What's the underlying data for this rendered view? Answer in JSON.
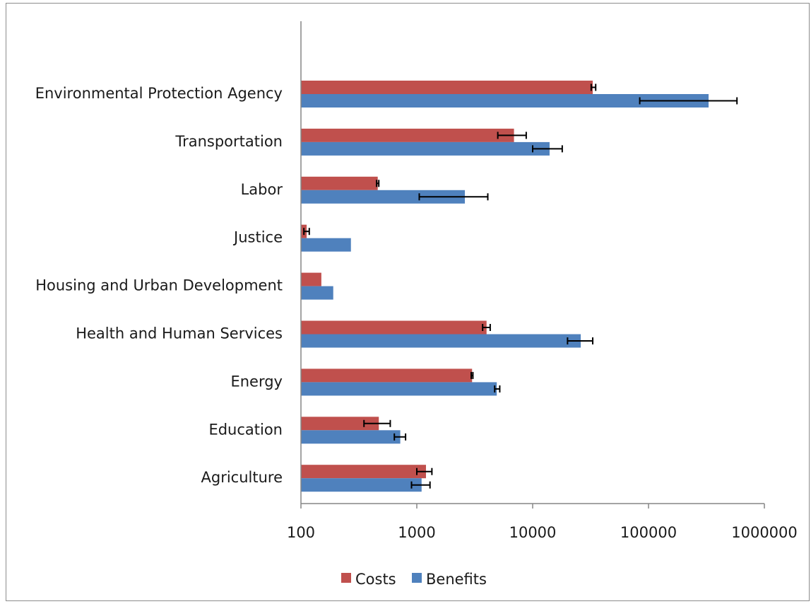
{
  "chart_data": {
    "type": "bar",
    "orientation": "horizontal",
    "xscale": "log",
    "xlim": [
      100,
      1000000
    ],
    "xticks": [
      "100",
      "1000",
      "10000",
      "100000",
      "1000000"
    ],
    "xtick_values": [
      100,
      1000,
      10000,
      100000,
      1000000
    ],
    "categories": [
      "Environmental Protection Agency",
      "Transportation",
      "Labor",
      "Justice",
      "Housing and Urban Development",
      "Health and Human Services",
      "Energy",
      "Education",
      "Agriculture"
    ],
    "series": [
      {
        "name": "Costs",
        "color": "#c0504d",
        "values": [
          33000,
          6900,
          460,
          112,
          150,
          4000,
          3000,
          470,
          1200
        ],
        "error_low": [
          32000,
          5000,
          450,
          106,
          null,
          3700,
          2950,
          350,
          1000
        ],
        "error_high": [
          35000,
          8800,
          470,
          118,
          null,
          4300,
          3050,
          590,
          1350
        ]
      },
      {
        "name": "Benefits",
        "color": "#4f81bd",
        "values": [
          330000,
          14000,
          2600,
          270,
          190,
          26000,
          4900,
          720,
          1100
        ],
        "error_low": [
          84000,
          10000,
          1050,
          null,
          null,
          20000,
          4700,
          640,
          900
        ],
        "error_high": [
          580000,
          18000,
          4100,
          null,
          null,
          33000,
          5200,
          800,
          1300
        ]
      }
    ],
    "legend": {
      "position": "bottom",
      "entries": [
        "Costs",
        "Benefits"
      ]
    },
    "grid": false
  }
}
